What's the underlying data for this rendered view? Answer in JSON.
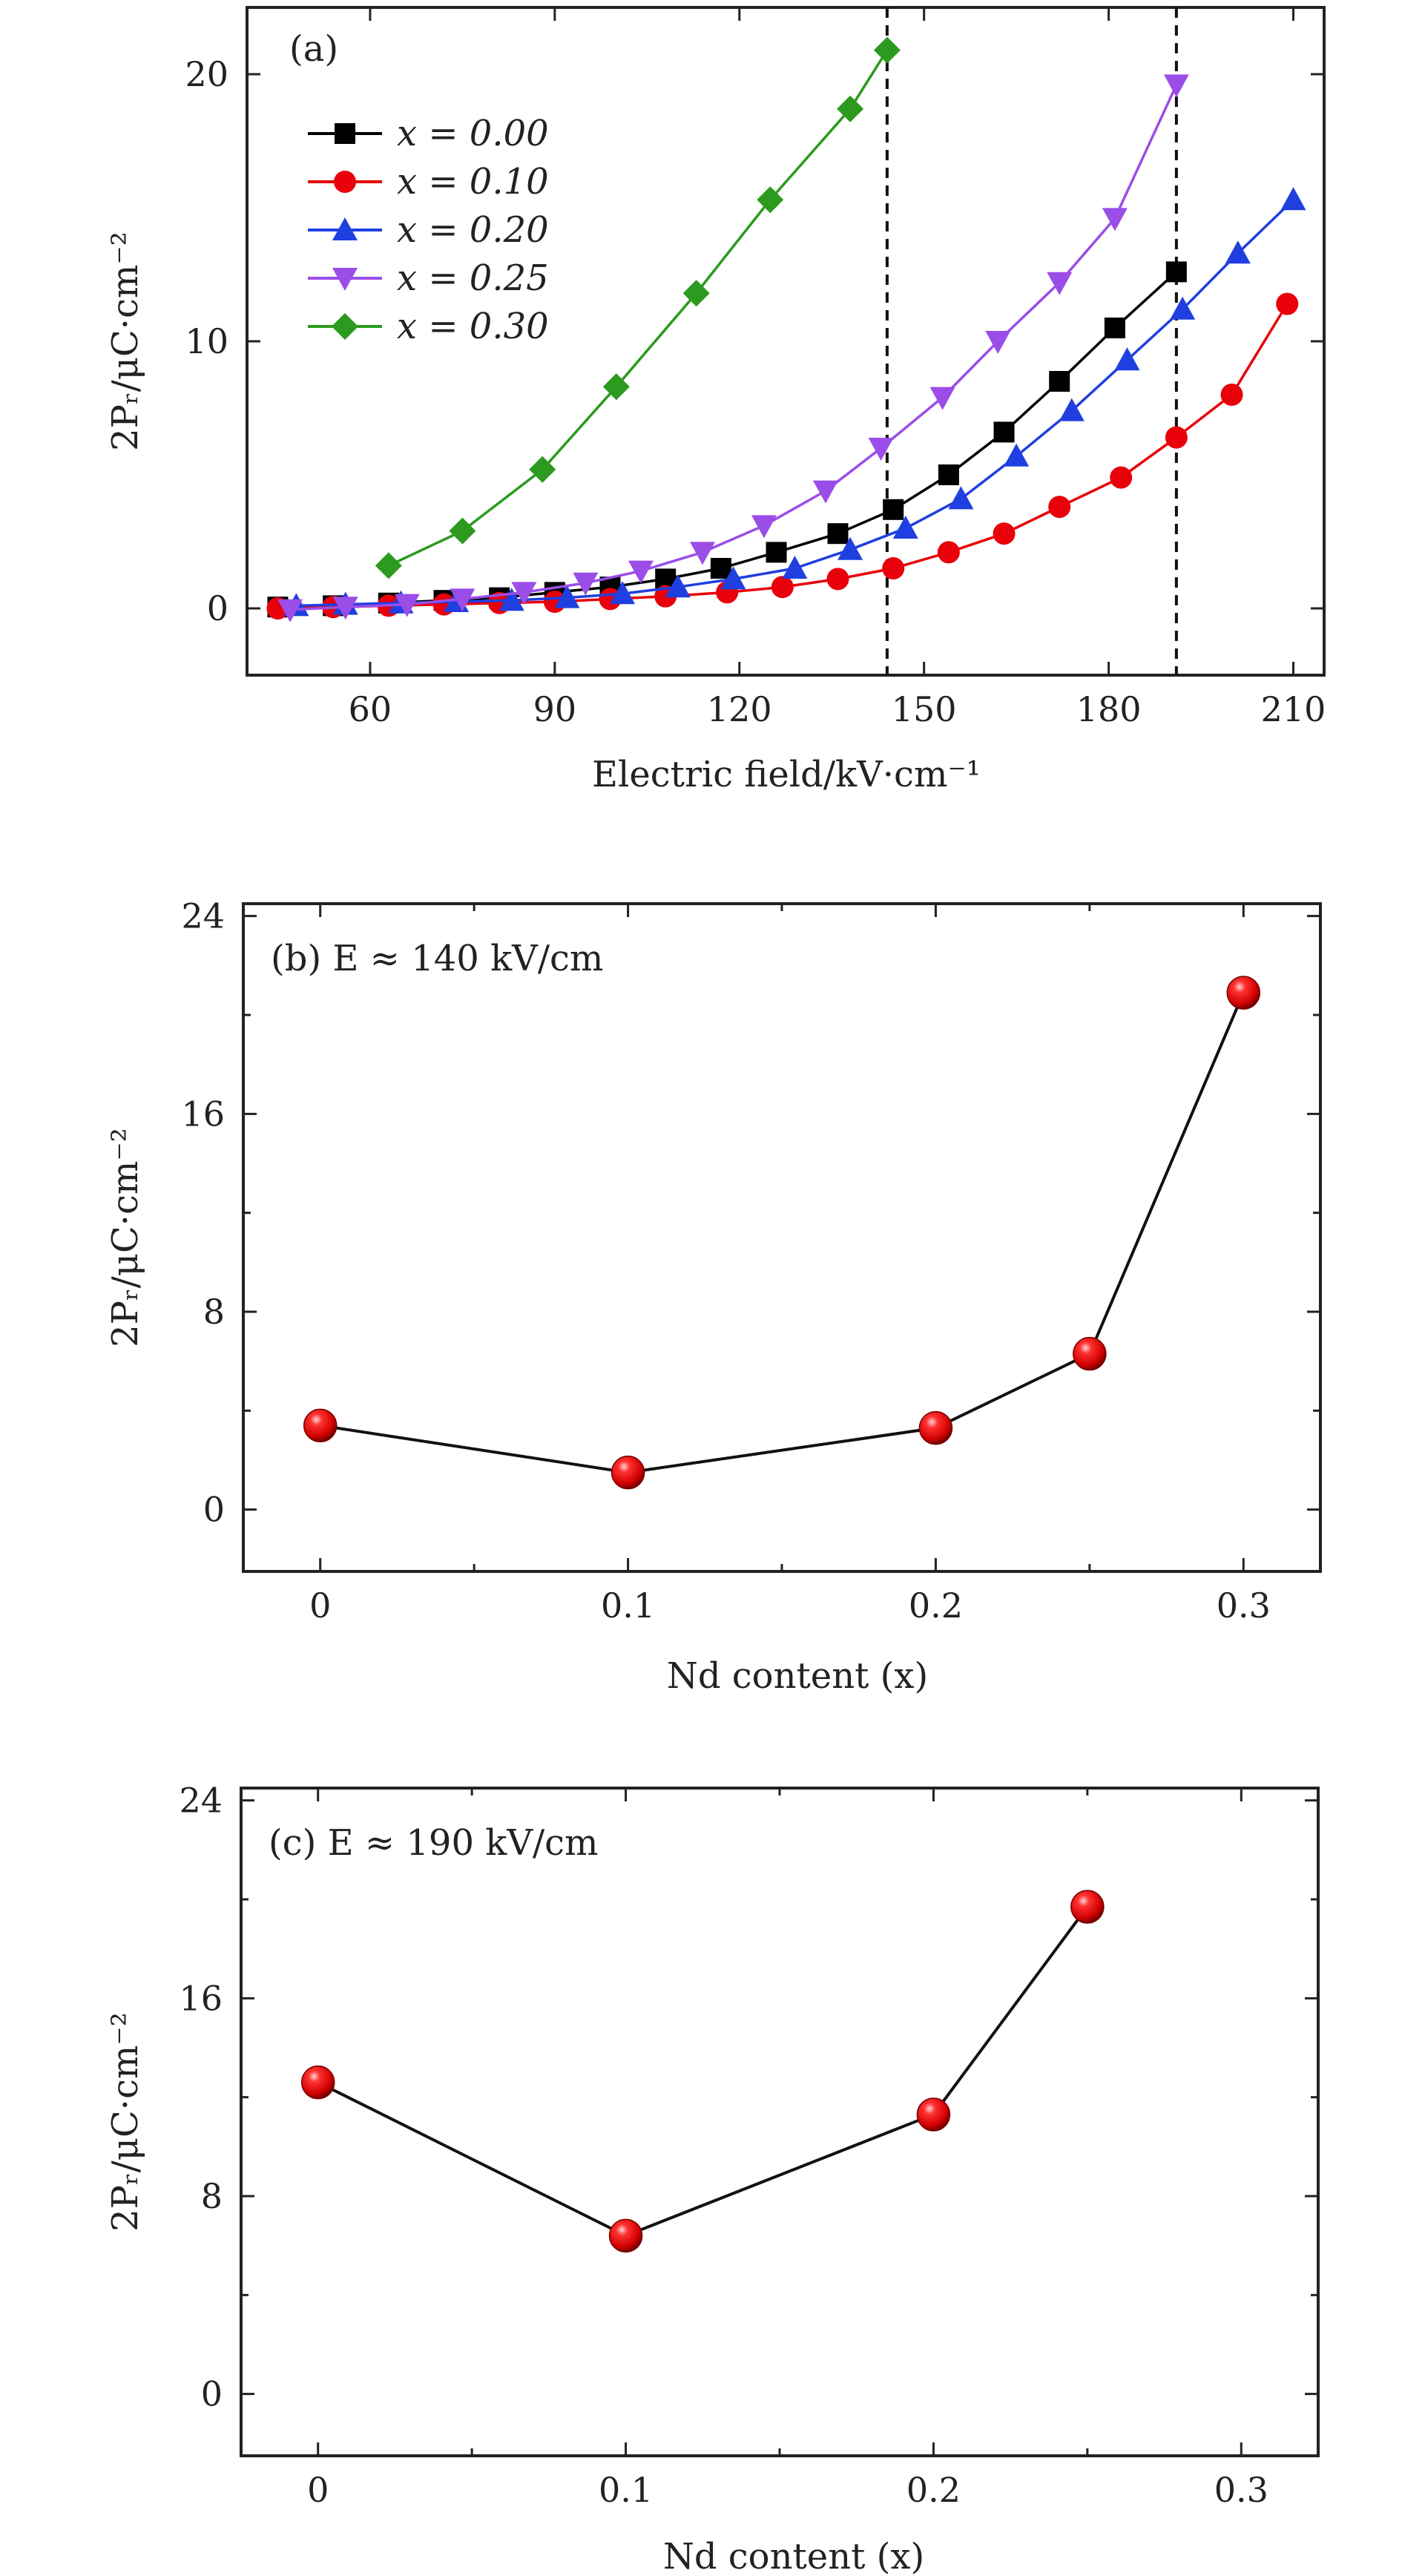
{
  "chart_data": [
    {
      "panel_id": "a",
      "type": "line",
      "panel_label": "(a)",
      "xlabel": "Electric field/kV·cm⁻¹",
      "ylabel": "2Pᵣ/μC·cm⁻²",
      "xlim": [
        40,
        215
      ],
      "ylim": [
        -2.5,
        22.5
      ],
      "xticks": [
        60,
        90,
        120,
        150,
        180,
        210
      ],
      "yticks": [
        0,
        10,
        20
      ],
      "xtick_labels": [
        "60",
        "90",
        "120",
        "150",
        "180",
        "210"
      ],
      "ytick_labels": [
        "0",
        "10",
        "20"
      ],
      "vlines": [
        144,
        191
      ],
      "legend_position": "upper-left",
      "series": [
        {
          "name": "x = 0.00",
          "color": "#000000",
          "marker": "square",
          "x": [
            45,
            54,
            63,
            72,
            81,
            90,
            99,
            108,
            117,
            126,
            136,
            145,
            154,
            163,
            172,
            181,
            191
          ],
          "values": [
            0.05,
            0.1,
            0.2,
            0.3,
            0.4,
            0.6,
            0.8,
            1.1,
            1.5,
            2.1,
            2.8,
            3.7,
            5.0,
            6.6,
            8.5,
            10.5,
            12.6
          ]
        },
        {
          "name": "x = 0.10",
          "color": "#e8000b",
          "marker": "circle",
          "x": [
            45,
            54,
            63,
            72,
            81,
            90,
            99,
            108,
            118,
            127,
            136,
            145,
            154,
            163,
            172,
            182,
            191,
            200,
            209
          ],
          "values": [
            0.0,
            0.05,
            0.1,
            0.15,
            0.2,
            0.25,
            0.35,
            0.45,
            0.6,
            0.8,
            1.1,
            1.5,
            2.1,
            2.8,
            3.8,
            4.9,
            6.4,
            8.0,
            11.4
          ]
        },
        {
          "name": "x = 0.20",
          "color": "#1f3fe0",
          "marker": "triangle-up",
          "x": [
            48,
            56,
            65,
            74,
            83,
            92,
            101,
            110,
            119,
            129,
            138,
            147,
            156,
            165,
            174,
            183,
            192,
            201,
            210
          ],
          "values": [
            0.1,
            0.15,
            0.2,
            0.25,
            0.3,
            0.4,
            0.55,
            0.8,
            1.1,
            1.5,
            2.2,
            3.0,
            4.1,
            5.7,
            7.4,
            9.3,
            11.2,
            13.3,
            15.3
          ]
        },
        {
          "name": "x = 0.25",
          "color": "#9b4de8",
          "marker": "triangle-down",
          "x": [
            47,
            56,
            66,
            75,
            85,
            95,
            104,
            114,
            124,
            134,
            143,
            153,
            162,
            172,
            181,
            191
          ],
          "values": [
            -0.05,
            0.05,
            0.15,
            0.35,
            0.6,
            0.95,
            1.4,
            2.1,
            3.1,
            4.4,
            6.0,
            7.9,
            10.0,
            12.2,
            14.6,
            19.6
          ]
        },
        {
          "name": "x = 0.30",
          "color": "#2c9a1e",
          "marker": "diamond",
          "x": [
            63,
            75,
            88,
            100,
            113,
            125,
            138,
            144
          ],
          "values": [
            1.6,
            2.9,
            5.2,
            8.3,
            11.8,
            15.3,
            18.7,
            20.9
          ]
        }
      ]
    },
    {
      "panel_id": "b",
      "type": "line",
      "panel_label": "(b) E ≈ 140 kV/cm",
      "xlabel": "Nd content (x)",
      "ylabel": "2Pᵣ/μC·cm⁻²",
      "xlim": [
        -0.025,
        0.325
      ],
      "ylim": [
        -2.5,
        24.5
      ],
      "xticks": [
        0,
        0.1,
        0.2,
        0.3
      ],
      "minor_xticks": [
        0.05,
        0.15,
        0.25
      ],
      "yticks": [
        0,
        8,
        16,
        24
      ],
      "minor_yticks": [
        4,
        12,
        20
      ],
      "xtick_labels": [
        "0",
        "0.1",
        "0.2",
        "0.3"
      ],
      "ytick_labels": [
        "0",
        "8",
        "16",
        "24"
      ],
      "x": [
        0,
        0.1,
        0.2,
        0.25,
        0.3
      ],
      "values": [
        3.4,
        1.5,
        3.3,
        6.3,
        20.9
      ]
    },
    {
      "panel_id": "c",
      "type": "line",
      "panel_label": "(c) E ≈ 190 kV/cm",
      "xlabel": "Nd content (x)",
      "ylabel": "2Pᵣ/μC·cm⁻²",
      "xlim": [
        -0.025,
        0.325
      ],
      "ylim": [
        -2.5,
        24.5
      ],
      "xticks": [
        0,
        0.1,
        0.2,
        0.3
      ],
      "minor_xticks": [
        0.05,
        0.15,
        0.25
      ],
      "yticks": [
        0,
        8,
        16,
        24
      ],
      "minor_yticks": [
        4,
        12,
        20
      ],
      "xtick_labels": [
        "0",
        "0.1",
        "0.2",
        "0.3"
      ],
      "ytick_labels": [
        "0",
        "8",
        "16",
        "24"
      ],
      "x": [
        0,
        0.1,
        0.2,
        0.25
      ],
      "values": [
        12.6,
        6.4,
        11.3,
        19.7
      ]
    }
  ]
}
